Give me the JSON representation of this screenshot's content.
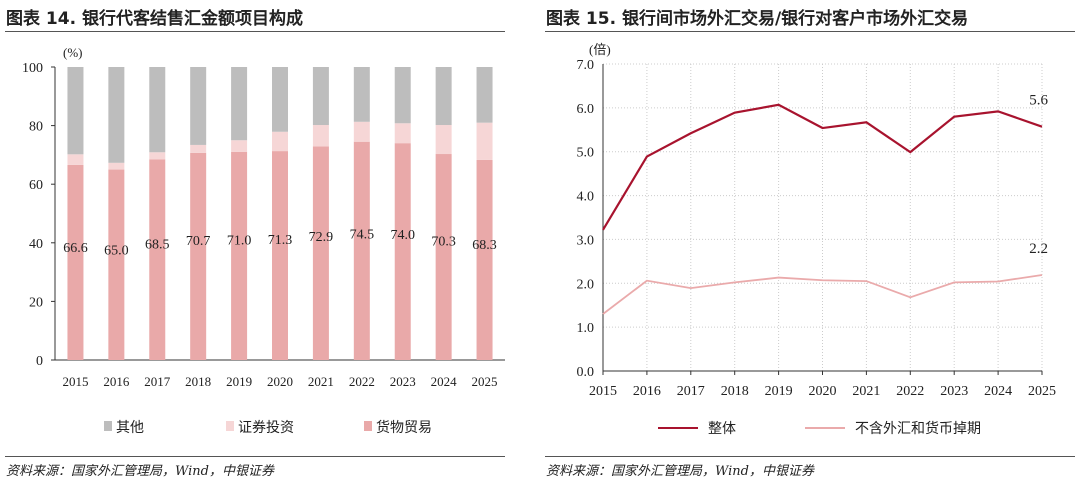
{
  "chart_data": [
    {
      "type": "bar",
      "stacked": true,
      "title": "图表 14. 银行代客结售汇金额项目构成",
      "ylabel": "(%)",
      "ylim": [
        0,
        100
      ],
      "yticks": [
        0,
        20,
        40,
        60,
        80,
        100
      ],
      "categories": [
        "2015",
        "2016",
        "2017",
        "2018",
        "2019",
        "2020",
        "2021",
        "2022",
        "2023",
        "2024",
        "2025"
      ],
      "series": [
        {
          "name": "货物贸易",
          "color": "#e9a9a9",
          "values": [
            66.6,
            65.0,
            68.5,
            70.7,
            71.0,
            71.3,
            72.9,
            74.5,
            74.0,
            70.3,
            68.3
          ],
          "labels": [
            "66.6",
            "65.0",
            "68.5",
            "70.7",
            "71.0",
            "71.3",
            "72.9",
            "74.5",
            "74.0",
            "70.3",
            "68.3"
          ]
        },
        {
          "name": "证券投资",
          "color": "#f6d6d6",
          "values": [
            3.6,
            2.3,
            2.4,
            2.7,
            4.0,
            6.6,
            7.3,
            6.8,
            6.8,
            9.9,
            12.7
          ]
        },
        {
          "name": "其他",
          "color": "#bdbdbd",
          "values": [
            29.8,
            32.7,
            29.1,
            26.6,
            25.0,
            22.1,
            19.8,
            18.7,
            19.2,
            19.8,
            19.0
          ]
        }
      ],
      "legend": [
        "其他",
        "证券投资",
        "货物贸易"
      ],
      "legend_position": "bottom",
      "grid": false,
      "source": "资料来源：国家外汇管理局，Wind，中银证券"
    },
    {
      "type": "line",
      "title": "图表 15. 银行间市场外汇交易/银行对客户市场外汇交易",
      "ylabel": "(倍)",
      "ylim": [
        0,
        7
      ],
      "yticks": [
        "0.0",
        "1.0",
        "2.0",
        "3.0",
        "4.0",
        "5.0",
        "6.0",
        "7.0"
      ],
      "categories": [
        "2015",
        "2016",
        "2017",
        "2018",
        "2019",
        "2020",
        "2021",
        "2022",
        "2023",
        "2024",
        "2025"
      ],
      "series": [
        {
          "name": "整体",
          "color": "#a8132e",
          "values": [
            3.22,
            4.89,
            5.42,
            5.89,
            6.07,
            5.54,
            5.67,
            4.99,
            5.8,
            5.92,
            5.57
          ],
          "end_label": "5.6"
        },
        {
          "name": "不含外汇和货币掉期",
          "color": "#eaaaab",
          "values": [
            1.3,
            2.06,
            1.89,
            2.02,
            2.13,
            2.07,
            2.05,
            1.68,
            2.02,
            2.04,
            2.19
          ],
          "end_label": "2.2"
        }
      ],
      "legend_position": "bottom",
      "grid": true,
      "source": "资料来源：国家外汇管理局，Wind，中银证券"
    }
  ]
}
